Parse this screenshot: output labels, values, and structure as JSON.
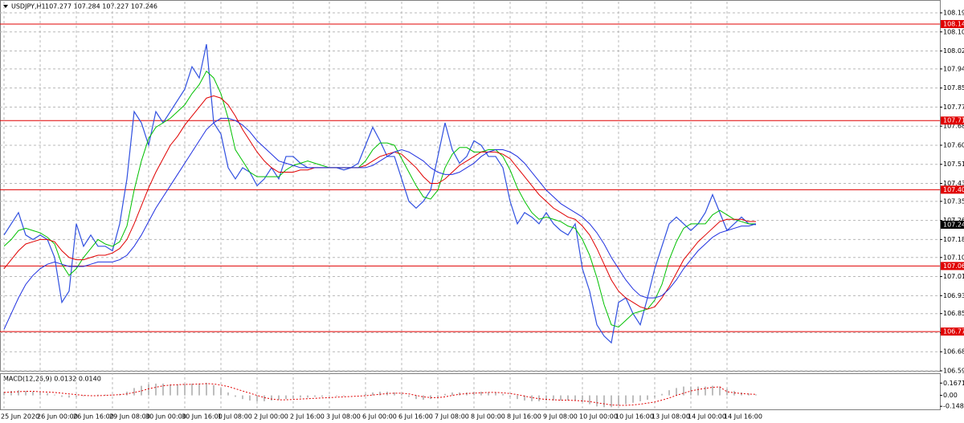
{
  "chart_data": [
    {
      "type": "line",
      "symbol": "USDJPY,H1",
      "quote": "107.277 107.284 107.227 107.246",
      "categories": [
        "25 Jun 2020",
        null,
        null,
        null,
        null,
        "26 Jun 00:00",
        null,
        null,
        null,
        null,
        "26 Jun 16:00",
        null,
        null,
        null,
        null,
        "29 Jun 08:00",
        null,
        null,
        null,
        null,
        "30 Jun 00:00",
        null,
        null,
        null,
        null,
        "30 Jun 16:00",
        null,
        null,
        null,
        null,
        "1 Jul 08:00",
        null,
        null,
        null,
        null,
        "2 Jul 00:00",
        null,
        null,
        null,
        null,
        "2 Jul 16:00",
        null,
        null,
        null,
        null,
        "3 Jul 08:00",
        null,
        null,
        null,
        null,
        "6 Jul 00:00",
        null,
        null,
        null,
        null,
        "6 Jul 16:00",
        null,
        null,
        null,
        null,
        "7 Jul 08:00",
        null,
        null,
        null,
        null,
        "8 Jul 00:00",
        null,
        null,
        null,
        null,
        "8 Jul 16:00",
        null,
        null,
        null,
        null,
        "9 Jul 08:00",
        null,
        null,
        null,
        null,
        "10 Jul 00:00",
        null,
        null,
        null,
        null,
        "10 Jul 16:00",
        null,
        null,
        null,
        null,
        "13 Jul 08:00",
        null,
        null,
        null,
        null,
        "14 Jul 00:00",
        null,
        null,
        null,
        null,
        "14 Jul 16:00",
        null,
        null,
        null,
        null
      ],
      "series": [
        {
          "color": "#3050e0",
          "width": 1.2,
          "values": [
            107.2,
            107.25,
            107.3,
            107.2,
            107.18,
            107.2,
            107.18,
            107.1,
            106.9,
            106.95,
            107.25,
            107.15,
            107.2,
            107.15,
            107.15,
            107.13,
            107.25,
            107.45,
            107.75,
            107.7,
            107.6,
            107.75,
            107.7,
            107.75,
            107.8,
            107.85,
            107.95,
            107.9,
            108.05,
            107.7,
            107.65,
            107.5,
            107.45,
            107.5,
            107.48,
            107.42,
            107.45,
            107.5,
            107.45,
            107.55,
            107.55,
            107.52,
            107.5,
            107.5,
            107.5,
            107.5,
            107.5,
            107.49,
            107.5,
            107.52,
            107.6,
            107.68,
            107.62,
            107.55,
            107.55,
            107.45,
            107.35,
            107.32,
            107.35,
            107.4,
            107.55,
            107.7,
            107.58,
            107.52,
            107.55,
            107.62,
            107.6,
            107.55,
            107.55,
            107.5,
            107.35,
            107.25,
            107.3,
            107.28,
            107.25,
            107.3,
            107.25,
            107.22,
            107.2,
            107.25,
            107.05,
            106.95,
            106.8,
            106.75,
            106.72,
            106.9,
            106.92,
            106.85,
            106.8,
            106.92,
            107.05,
            107.15,
            107.25,
            107.28,
            107.25,
            107.22,
            107.25,
            107.3,
            107.38,
            107.3,
            107.22,
            107.25,
            107.28,
            107.25,
            107.246
          ]
        },
        {
          "color": "#00c000",
          "width": 1,
          "values": [
            107.15,
            107.18,
            107.22,
            107.23,
            107.22,
            107.21,
            107.19,
            107.16,
            107.07,
            107.02,
            107.05,
            107.1,
            107.14,
            107.18,
            107.16,
            107.15,
            107.17,
            107.24,
            107.4,
            107.53,
            107.63,
            107.68,
            107.7,
            107.72,
            107.75,
            107.78,
            107.83,
            107.87,
            107.93,
            107.9,
            107.83,
            107.72,
            107.58,
            107.53,
            107.48,
            107.46,
            107.46,
            107.46,
            107.46,
            107.49,
            107.51,
            107.52,
            107.53,
            107.52,
            107.51,
            107.5,
            107.5,
            107.5,
            107.5,
            107.5,
            107.53,
            107.58,
            107.61,
            107.61,
            107.6,
            107.54,
            107.48,
            107.42,
            107.37,
            107.36,
            107.4,
            107.5,
            107.56,
            107.59,
            107.59,
            107.57,
            107.57,
            107.58,
            107.58,
            107.55,
            107.49,
            107.41,
            107.35,
            107.3,
            107.27,
            107.28,
            107.27,
            107.26,
            107.24,
            107.23,
            107.18,
            107.11,
            107.01,
            106.89,
            106.8,
            106.79,
            106.82,
            106.85,
            106.86,
            106.87,
            106.91,
            106.98,
            107.09,
            107.17,
            107.23,
            107.25,
            107.25,
            107.25,
            107.29,
            107.31,
            107.29,
            107.27,
            107.26,
            107.25,
            107.25
          ]
        },
        {
          "color": "#e00000",
          "width": 1,
          "values": [
            107.05,
            107.09,
            107.13,
            107.16,
            107.17,
            107.18,
            107.18,
            107.17,
            107.13,
            107.1,
            107.09,
            107.09,
            107.1,
            107.11,
            107.11,
            107.12,
            107.14,
            107.18,
            107.25,
            107.33,
            107.41,
            107.48,
            107.54,
            107.6,
            107.64,
            107.69,
            107.73,
            107.77,
            107.81,
            107.82,
            107.81,
            107.78,
            107.73,
            107.67,
            107.62,
            107.57,
            107.53,
            107.5,
            107.48,
            107.48,
            107.48,
            107.49,
            107.49,
            107.5,
            107.5,
            107.5,
            107.5,
            107.5,
            107.5,
            107.5,
            107.51,
            107.53,
            107.55,
            107.56,
            107.57,
            107.56,
            107.53,
            107.5,
            107.46,
            107.43,
            107.43,
            107.45,
            107.48,
            107.51,
            107.53,
            107.55,
            107.57,
            107.57,
            107.57,
            107.56,
            107.54,
            107.5,
            107.46,
            107.42,
            107.38,
            107.35,
            107.32,
            107.3,
            107.28,
            107.27,
            107.24,
            107.2,
            107.14,
            107.07,
            107.0,
            106.95,
            106.92,
            106.9,
            106.88,
            106.87,
            106.88,
            106.92,
            106.97,
            107.03,
            107.09,
            107.13,
            107.17,
            107.2,
            107.23,
            107.26,
            107.27,
            107.27,
            107.27,
            107.26,
            107.26
          ]
        },
        {
          "color": "#2030e0",
          "width": 1,
          "values": [
            106.78,
            106.85,
            106.92,
            106.98,
            107.02,
            107.05,
            107.07,
            107.08,
            107.07,
            107.06,
            107.06,
            107.06,
            107.07,
            107.08,
            107.08,
            107.08,
            107.09,
            107.11,
            107.15,
            107.2,
            107.26,
            107.32,
            107.37,
            107.42,
            107.47,
            107.52,
            107.57,
            107.62,
            107.67,
            107.7,
            107.72,
            107.72,
            107.71,
            107.69,
            107.66,
            107.62,
            107.59,
            107.56,
            107.53,
            107.52,
            107.51,
            107.5,
            107.5,
            107.5,
            107.5,
            107.5,
            107.5,
            107.5,
            107.5,
            107.5,
            107.5,
            107.51,
            107.53,
            107.55,
            107.57,
            107.58,
            107.57,
            107.55,
            107.53,
            107.5,
            107.48,
            107.47,
            107.47,
            107.48,
            107.5,
            107.52,
            107.55,
            107.57,
            107.58,
            107.58,
            107.57,
            107.55,
            107.52,
            107.48,
            107.44,
            107.4,
            107.37,
            107.34,
            107.32,
            107.3,
            107.28,
            107.25,
            107.21,
            107.16,
            107.1,
            107.05,
            107.0,
            106.96,
            106.93,
            106.92,
            106.92,
            106.93,
            106.96,
            107.0,
            107.05,
            107.09,
            107.13,
            107.16,
            107.19,
            107.21,
            107.22,
            107.23,
            107.24,
            107.24,
            107.25
          ]
        }
      ],
      "ylim": [
        106.595,
        108.24
      ],
      "yticks": [
        {
          "value": 108.19,
          "label": "108.190"
        },
        108.105,
        {
          "value": 108.02,
          "label": "108.020"
        },
        {
          "value": 107.94,
          "label": "107.940"
        },
        107.855,
        {
          "value": 107.77,
          "label": "107.770"
        },
        107.685,
        {
          "value": 107.6,
          "label": "107.600"
        },
        107.515,
        {
          "value": 107.43,
          "label": "107.430"
        },
        {
          "value": 107.35,
          "label": "107.350"
        },
        107.265,
        {
          "value": 107.18,
          "label": "107.180"
        },
        {
          "value": 107.1,
          "label": "107.100"
        },
        107.015,
        {
          "value": 106.93,
          "label": "106.930"
        },
        {
          "value": 106.85,
          "label": "106.850"
        },
        106.765,
        {
          "value": 106.68,
          "label": "106.680"
        },
        106.595
      ],
      "grid": true,
      "level_color": "#e00000",
      "levels": [
        {
          "value": 108.14,
          "label": "108.140"
        },
        {
          "value": 107.71,
          "label": "107.710"
        },
        107.402,
        107.062,
        {
          "value": 106.77,
          "label": "106.770"
        }
      ],
      "current_price": 107.246
    },
    {
      "type": "macd",
      "label": "MACD(12,26,9) 0.0132 0.0140",
      "series": [
        {
          "style": "histogram",
          "color": "#a8a8a8",
          "values": [
            0.05,
            0.06,
            0.07,
            0.06,
            0.05,
            0.04,
            0.03,
            0.01,
            -0.02,
            -0.03,
            -0.02,
            -0.01,
            0.0,
            0.01,
            0.01,
            0.01,
            0.02,
            0.05,
            0.1,
            0.13,
            0.15,
            0.16,
            0.16,
            0.15,
            0.15,
            0.15,
            0.16,
            0.16,
            0.17,
            0.14,
            0.1,
            0.04,
            -0.02,
            -0.05,
            -0.07,
            -0.08,
            -0.08,
            -0.07,
            -0.06,
            -0.05,
            -0.04,
            -0.03,
            -0.03,
            -0.02,
            -0.02,
            -0.01,
            -0.01,
            -0.01,
            0.0,
            0.0,
            0.02,
            0.04,
            0.05,
            0.05,
            0.04,
            0.02,
            -0.02,
            -0.05,
            -0.06,
            -0.05,
            -0.02,
            0.02,
            0.04,
            0.04,
            0.04,
            0.05,
            0.05,
            0.04,
            0.04,
            0.02,
            -0.02,
            -0.05,
            -0.07,
            -0.08,
            -0.08,
            -0.07,
            -0.07,
            -0.07,
            -0.07,
            -0.07,
            -0.09,
            -0.12,
            -0.15,
            -0.16,
            -0.16,
            -0.14,
            -0.12,
            -0.1,
            -0.08,
            -0.06,
            -0.03,
            0.02,
            0.07,
            0.1,
            0.12,
            0.12,
            0.12,
            0.12,
            0.13,
            0.12,
            0.09,
            0.06,
            0.04,
            0.025,
            0.0132
          ]
        },
        {
          "style": "dotted-line",
          "color": "#e00000",
          "values": [
            0.04,
            0.045,
            0.05,
            0.055,
            0.055,
            0.05,
            0.045,
            0.04,
            0.03,
            0.02,
            0.01,
            0.0,
            -0.005,
            -0.005,
            0.0,
            0.005,
            0.01,
            0.02,
            0.04,
            0.06,
            0.09,
            0.11,
            0.13,
            0.14,
            0.145,
            0.15,
            0.15,
            0.155,
            0.16,
            0.155,
            0.14,
            0.12,
            0.09,
            0.06,
            0.03,
            0.0,
            -0.03,
            -0.05,
            -0.06,
            -0.06,
            -0.055,
            -0.05,
            -0.045,
            -0.04,
            -0.035,
            -0.03,
            -0.025,
            -0.02,
            -0.015,
            -0.01,
            -0.005,
            0.005,
            0.015,
            0.025,
            0.03,
            0.03,
            0.02,
            0.0,
            -0.02,
            -0.03,
            -0.03,
            -0.02,
            0.0,
            0.015,
            0.025,
            0.03,
            0.035,
            0.04,
            0.04,
            0.035,
            0.025,
            0.01,
            -0.01,
            -0.03,
            -0.045,
            -0.055,
            -0.06,
            -0.065,
            -0.065,
            -0.07,
            -0.075,
            -0.085,
            -0.1,
            -0.115,
            -0.13,
            -0.135,
            -0.135,
            -0.13,
            -0.12,
            -0.105,
            -0.09,
            -0.065,
            -0.035,
            0.0,
            0.03,
            0.06,
            0.08,
            0.095,
            0.11,
            0.115,
            0.05,
            0.035,
            0.025,
            0.018,
            0.014
          ]
        }
      ],
      "ylim": [
        -0.19,
        0.29
      ],
      "yticks": [
        0.1671,
        {
          "value": 0,
          "label": "0.00"
        },
        -0.1486
      ]
    }
  ]
}
